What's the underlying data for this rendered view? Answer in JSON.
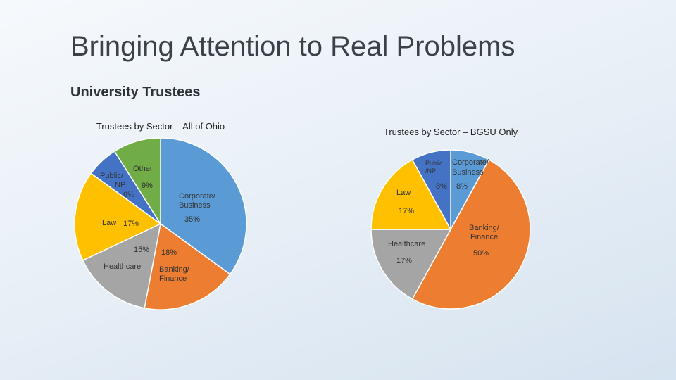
{
  "slide": {
    "title": "Bringing Attention to Real Problems",
    "subtitle": "University Trustees"
  },
  "colors": {
    "corporate": "#5b9bd5",
    "banking": "#ed7d31",
    "healthcare": "#a5a5a5",
    "law": "#ffc000",
    "public": "#4472c4",
    "other": "#70ad47"
  },
  "chart_data": [
    {
      "type": "pie",
      "title": "Trustees by Sector – All of Ohio",
      "start_angle_deg": 0,
      "slices": [
        {
          "key": "corporate",
          "label": "Corporate/ Business",
          "value": 35,
          "pct_label": "35%"
        },
        {
          "key": "banking",
          "label": "Banking/ Finance",
          "value": 18,
          "pct_label": "18%"
        },
        {
          "key": "healthcare",
          "label": "Healthcare",
          "value": 15,
          "pct_label": "15%"
        },
        {
          "key": "law",
          "label": "Law",
          "value": 17,
          "pct_label": "17%"
        },
        {
          "key": "public",
          "label": "Public/ NP",
          "value": 6,
          "pct_label": "6%"
        },
        {
          "key": "other",
          "label": "Other",
          "value": 9,
          "pct_label": "9%"
        }
      ]
    },
    {
      "type": "pie",
      "title": "Trustees by Sector – BGSU Only",
      "start_angle_deg": 0,
      "slices": [
        {
          "key": "corporate",
          "label": "Corporate/ Business",
          "value": 8,
          "pct_label": "8%"
        },
        {
          "key": "banking",
          "label": "Banking/ Finance",
          "value": 50,
          "pct_label": "50%"
        },
        {
          "key": "healthcare",
          "label": "Healthcare",
          "value": 17,
          "pct_label": "17%"
        },
        {
          "key": "law",
          "label": "Law",
          "value": 17,
          "pct_label": "17%"
        },
        {
          "key": "public",
          "label": "Public /NP",
          "value": 8,
          "pct_label": "8%"
        }
      ]
    }
  ]
}
